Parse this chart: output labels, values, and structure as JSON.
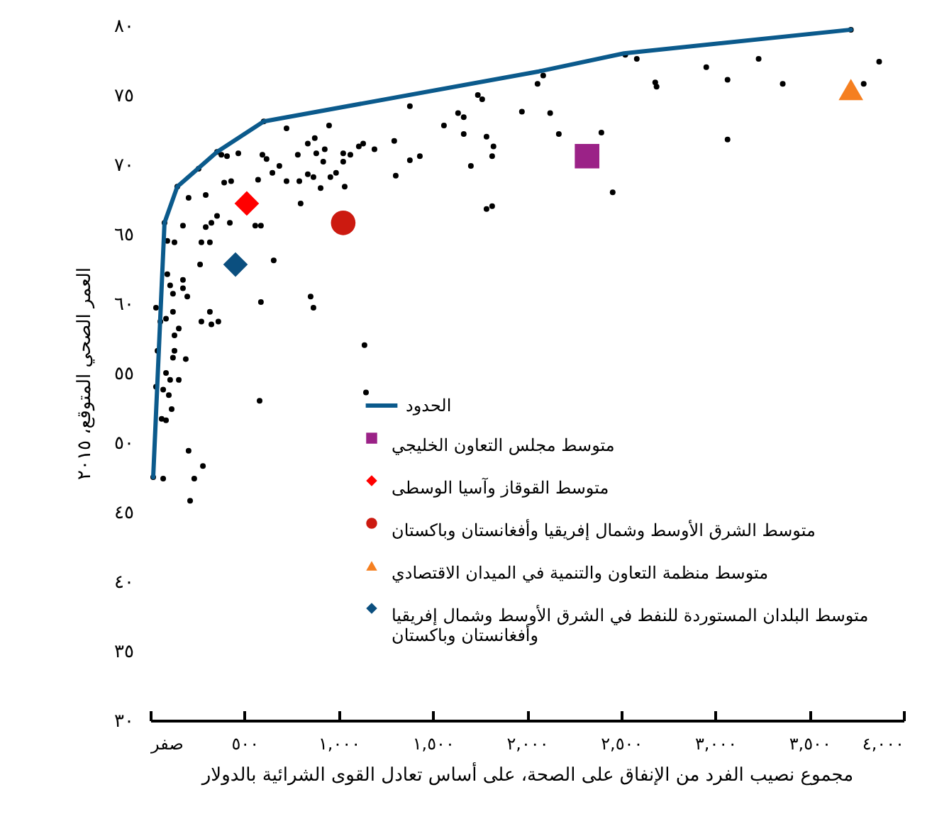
{
  "chart_data": {
    "type": "scatter",
    "xlabel": "مجموع نصيب الفرد من الإنفاق على الصحة، على أساس تعادل القوى الشرائية بالدولار",
    "ylabel": "العمر الصحي المتوقع، ٢٠١٥",
    "xlim": [
      0,
      4000
    ],
    "ylim": [
      30,
      80
    ],
    "xticks": [
      {
        "value": 0,
        "label": "صفر"
      },
      {
        "value": 500,
        "label": "٥٠٠"
      },
      {
        "value": 1000,
        "label": "١,٠٠٠"
      },
      {
        "value": 1500,
        "label": "١,٥٠٠"
      },
      {
        "value": 2000,
        "label": "٢,٠٠٠"
      },
      {
        "value": 2500,
        "label": "٢,٥٠٠"
      },
      {
        "value": 3000,
        "label": "٣,٠٠٠"
      },
      {
        "value": 3500,
        "label": "٣,٥٠٠"
      },
      {
        "value": 4000,
        "label": "٤,٠٠٠"
      }
    ],
    "yticks": [
      {
        "value": 30,
        "label": "٣٠"
      },
      {
        "value": 35,
        "label": "٣٥"
      },
      {
        "value": 40,
        "label": "٤٠"
      },
      {
        "value": 45,
        "label": "٤٥"
      },
      {
        "value": 50,
        "label": "٥٠"
      },
      {
        "value": 55,
        "label": "٥٥"
      },
      {
        "value": 60,
        "label": "٦٠"
      },
      {
        "value": 65,
        "label": "٦٥"
      },
      {
        "value": 70,
        "label": "٧٠"
      },
      {
        "value": 75,
        "label": "٧٥"
      },
      {
        "value": 80,
        "label": "٨٠"
      }
    ],
    "grid": false,
    "legend": "bottom right",
    "series": [
      {
        "color": "#000000",
        "marker": "circle",
        "x": [
          723,
          949,
          1378,
          1739,
          1762,
          1973,
          2123,
          2086,
          2056,
          1559,
          1634,
          1664,
          1664,
          1785,
          1822,
          1815,
          1702,
          1431,
          1378,
          1303,
          1295,
          1190,
          1130,
          1107,
          1062,
          1024,
          1024,
          1032,
          986,
          956,
          926,
          918,
          881,
          873,
          836,
          836,
          866,
          904,
          783,
          791,
          798,
          723,
          685,
          648,
          617,
          595,
          572,
          467,
          407,
          377,
          429,
          392,
          256,
          294,
          203,
          354,
          324,
          294,
          422,
          557,
          587,
          173,
          90,
          128,
          271,
          316,
          264,
          655,
          90,
          173,
          105,
          173,
          196,
          120,
          587,
          851,
          866,
          316,
          271,
          324,
          361,
          30,
          120,
          53,
          83,
          151,
          128,
          38,
          128,
          188,
          120,
          83,
          151,
          105,
          30,
          68,
          98,
          113,
          60,
          1137,
          1145,
          580,
          203,
          279,
          233,
          211,
          68,
          83,
          15,
          75,
          143,
          354,
          602,
          2522,
          2583,
          2952,
          3230,
          3065,
          3358,
          2681,
          2688,
          3870,
          3788,
          3720,
          2169,
          2395,
          3065,
          2455,
          1815,
          1785
        ],
        "values": [
          72.6,
          72.8,
          74.2,
          75.0,
          74.7,
          73.8,
          73.7,
          76.4,
          75.8,
          72.8,
          73.7,
          73.4,
          72.2,
          72.0,
          71.3,
          70.6,
          69.9,
          70.6,
          70.3,
          69.2,
          71.7,
          71.1,
          71.5,
          71.3,
          70.7,
          70.8,
          70.2,
          68.4,
          69.4,
          69.1,
          71.1,
          70.2,
          70.8,
          71.9,
          71.5,
          69.3,
          69.1,
          68.3,
          70.7,
          68.8,
          67.2,
          68.8,
          69.9,
          69.4,
          70.4,
          70.7,
          68.9,
          70.8,
          70.6,
          70.7,
          68.8,
          68.7,
          69.7,
          67.8,
          67.6,
          66.3,
          65.8,
          65.5,
          65.8,
          65.6,
          65.6,
          65.6,
          64.5,
          64.4,
          64.4,
          64.4,
          62.8,
          63.1,
          62.1,
          61.7,
          61.3,
          61.1,
          60.5,
          60.7,
          60.1,
          60.5,
          59.7,
          59.4,
          58.7,
          58.5,
          58.7,
          59.7,
          59.4,
          58.7,
          58.9,
          58.2,
          57.7,
          56.6,
          56.6,
          56.0,
          56.1,
          55.0,
          54.5,
          54.5,
          54.0,
          53.8,
          53.4,
          52.4,
          51.7,
          57.0,
          53.6,
          53.0,
          49.4,
          48.3,
          47.4,
          45.8,
          47.4,
          51.6,
          47.5,
          65.8,
          68.4,
          70.9,
          73.1,
          77.9,
          77.6,
          77.0,
          77.6,
          76.1,
          75.8,
          75.9,
          75.6,
          77.4,
          75.8,
          79.7,
          72.2,
          72.3,
          71.8,
          68.0,
          67.0,
          66.8
        ]
      },
      {
        "type": "line",
        "name": "الحدود",
        "color": "#0b5a8c",
        "x": [
          15,
          75,
          143,
          354,
          602,
          2063,
          2515,
          3720
        ],
        "values": [
          47.5,
          65.8,
          68.4,
          70.9,
          73.1,
          76.7,
          78.0,
          79.7
        ]
      },
      {
        "name": "متوسط مجلس التعاون الخليجي",
        "color": "#9b2287",
        "marker": "square",
        "x": [
          2319
        ],
        "values": [
          70.6
        ]
      },
      {
        "name": "متوسط القوقاز وآسيا الوسطى",
        "color": "#ff0000",
        "marker": "diamond",
        "x": [
          512
        ],
        "values": [
          67.2
        ]
      },
      {
        "name": "متوسط الشرق الأوسط وشمال إفريقيا وأفغانستان وباكستان",
        "color": "#cc1a10",
        "marker": "circle",
        "x": [
          1024
        ],
        "values": [
          65.8
        ]
      },
      {
        "name": "متوسط منظمة التعاون والتنمية في الميدان الاقتصادي",
        "color": "#f57f20",
        "marker": "triangle",
        "x": [
          3720
        ],
        "values": [
          75.4
        ]
      },
      {
        "name": "متوسط البلدان المستوردة للنفط في الشرق الأوسط وشمال إفريقيا وأفغانستان وباكستان",
        "color": "#0b4f7f",
        "marker": "diamond",
        "x": [
          452
        ],
        "values": [
          62.8
        ]
      }
    ]
  }
}
